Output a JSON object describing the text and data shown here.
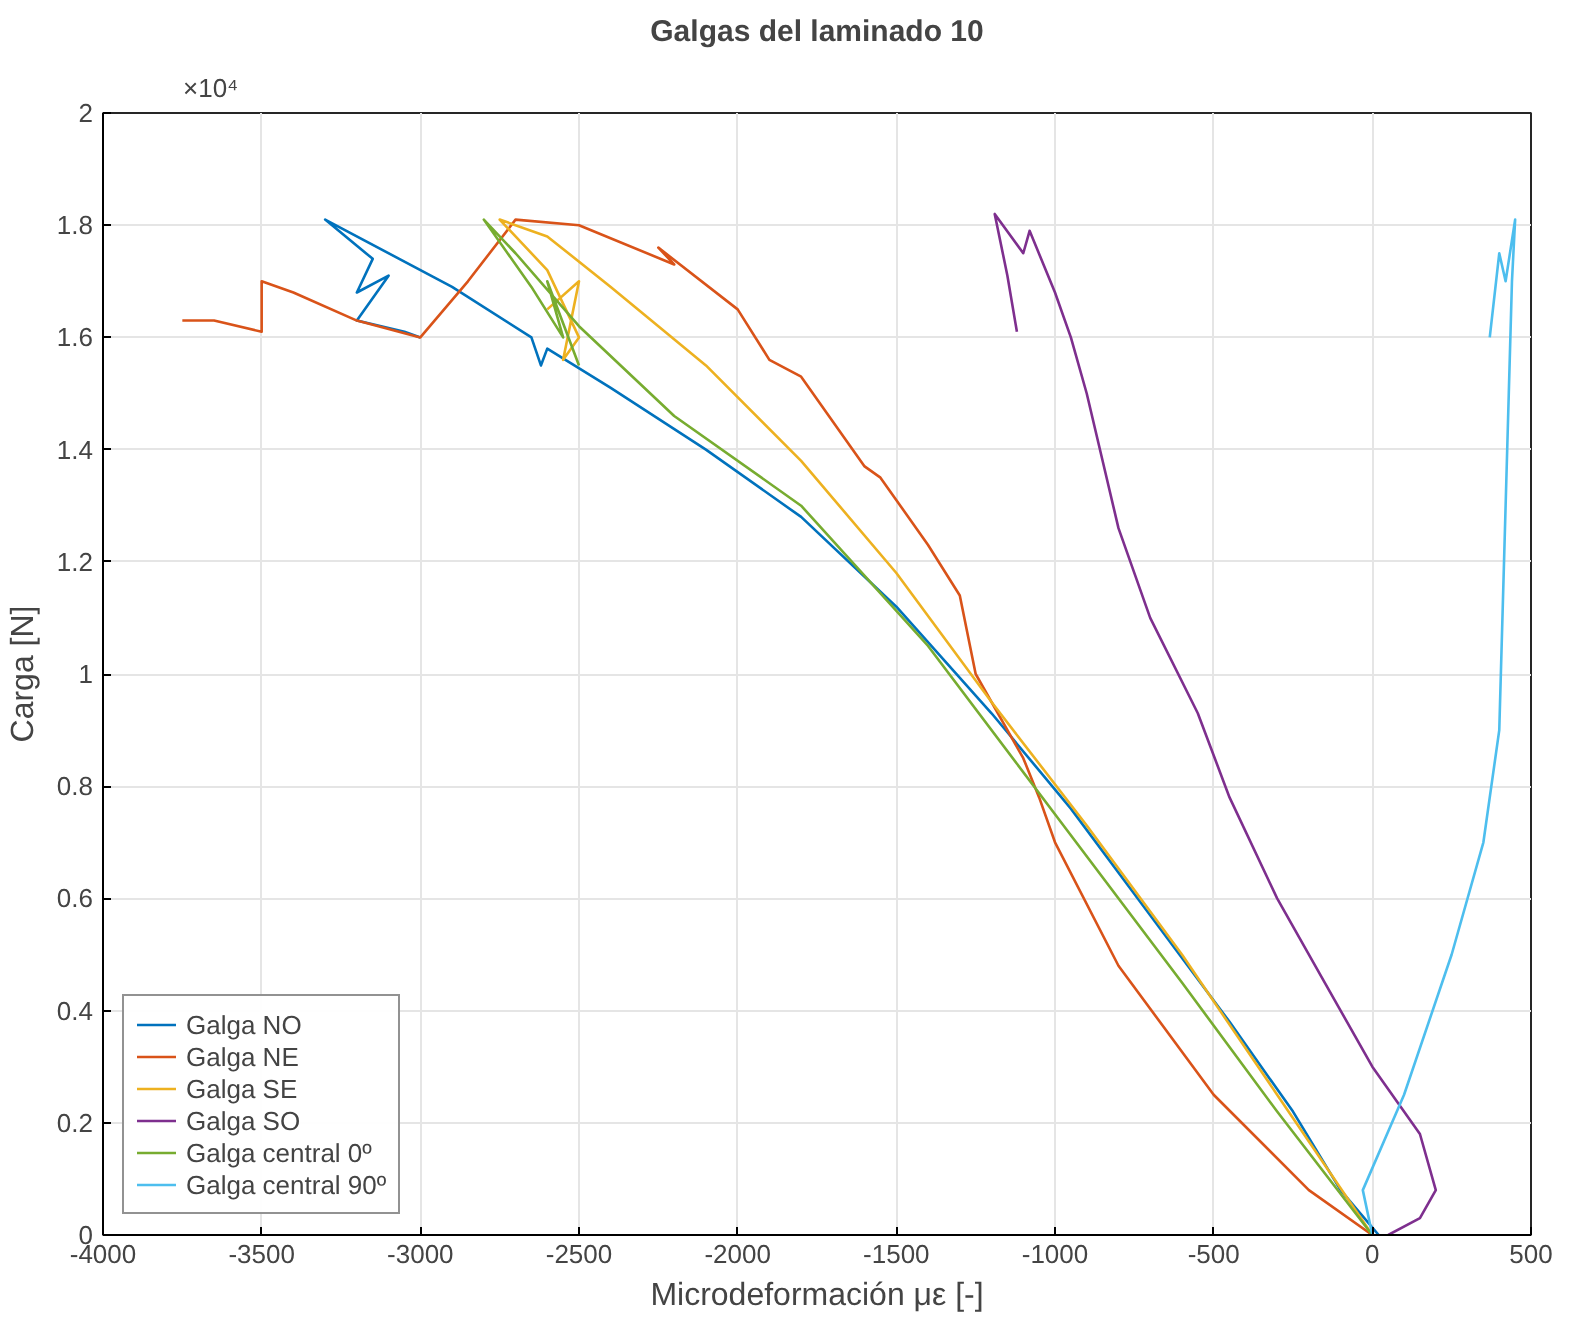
{
  "chart_data": {
    "type": "line",
    "title": "Galgas del laminado 10",
    "xlabel": "Microdeformación με [-]",
    "ylabel": "Carga [N]",
    "annotations": [
      "×10⁴"
    ],
    "xlim": [
      -4000,
      500
    ],
    "xticks": [
      -4000,
      -3500,
      -3000,
      -2500,
      -2000,
      -1500,
      -1000,
      -500,
      0,
      500
    ],
    "ylim": [
      0,
      2
    ],
    "yticks": [
      0,
      0.2,
      0.4,
      0.6,
      0.8,
      1,
      1.2,
      1.4,
      1.6,
      1.8,
      2
    ],
    "grid": true,
    "legend": "bottom left",
    "marker": "none",
    "line_style": "solid",
    "series": [
      {
        "name": "Galga NO",
        "color": "#0072bd",
        "x": [
          20,
          -100,
          -250,
          -450,
          -700,
          -950,
          -1200,
          -1500,
          -1800,
          -2100,
          -2400,
          -2600,
          -2620,
          -2650,
          -2900,
          -3300,
          -3150,
          -3200,
          -3100,
          -3200,
          -3050,
          -3000
        ],
        "values": [
          0,
          0.08,
          0.22,
          0.38,
          0.57,
          0.76,
          0.93,
          1.12,
          1.28,
          1.4,
          1.51,
          1.58,
          1.55,
          1.6,
          1.69,
          1.81,
          1.74,
          1.68,
          1.71,
          1.63,
          1.61,
          1.6
        ]
      },
      {
        "name": "Galga NE",
        "color": "#d95319",
        "x": [
          0,
          -200,
          -500,
          -800,
          -1000,
          -1050,
          -1100,
          -1250,
          -1300,
          -1400,
          -1550,
          -1600,
          -1800,
          -1900,
          -2000,
          -2250,
          -2200,
          -2500,
          -2700,
          -2850,
          -3000,
          -3200,
          -3400,
          -3500,
          -3500,
          -3650,
          -3750
        ],
        "values": [
          0,
          0.08,
          0.25,
          0.48,
          0.7,
          0.78,
          0.85,
          1.0,
          1.14,
          1.23,
          1.35,
          1.37,
          1.53,
          1.56,
          1.65,
          1.76,
          1.73,
          1.8,
          1.81,
          1.7,
          1.6,
          1.63,
          1.68,
          1.7,
          1.61,
          1.63,
          1.63
        ]
      },
      {
        "name": "Galga SE",
        "color": "#edb120",
        "x": [
          0,
          -300,
          -600,
          -900,
          -1200,
          -1500,
          -1800,
          -2100,
          -2400,
          -2600,
          -2750,
          -2600,
          -2500,
          -2550,
          -2500,
          -2600
        ],
        "values": [
          0,
          0.25,
          0.5,
          0.73,
          0.95,
          1.18,
          1.38,
          1.55,
          1.69,
          1.78,
          1.81,
          1.72,
          1.6,
          1.56,
          1.7,
          1.65
        ]
      },
      {
        "name": "Galga SO",
        "color": "#7e2f8e",
        "x": [
          50,
          150,
          200,
          150,
          0,
          -150,
          -300,
          -450,
          -550,
          -700,
          -800,
          -850,
          -900,
          -950,
          -1000,
          -1080,
          -1100,
          -1190,
          -1150,
          -1120
        ],
        "values": [
          0,
          0.03,
          0.08,
          0.18,
          0.3,
          0.45,
          0.6,
          0.78,
          0.93,
          1.1,
          1.26,
          1.38,
          1.5,
          1.6,
          1.68,
          1.79,
          1.75,
          1.82,
          1.71,
          1.61
        ]
      },
      {
        "name": "Galga central 0º",
        "color": "#77ac30",
        "x": [
          0,
          -300,
          -600,
          -1000,
          -1400,
          -1800,
          -2200,
          -2500,
          -2700,
          -2800,
          -2650,
          -2550,
          -2600,
          -2500
        ],
        "values": [
          0,
          0.22,
          0.45,
          0.75,
          1.05,
          1.3,
          1.46,
          1.62,
          1.75,
          1.81,
          1.69,
          1.6,
          1.7,
          1.55
        ]
      },
      {
        "name": "Galga central 90º",
        "color": "#4dbeee",
        "x": [
          0,
          -30,
          100,
          250,
          350,
          400,
          410,
          420,
          430,
          440,
          450,
          420,
          400,
          370
        ],
        "values": [
          0,
          0.08,
          0.25,
          0.5,
          0.7,
          0.9,
          1.1,
          1.3,
          1.5,
          1.7,
          1.81,
          1.7,
          1.75,
          1.6
        ]
      }
    ]
  }
}
